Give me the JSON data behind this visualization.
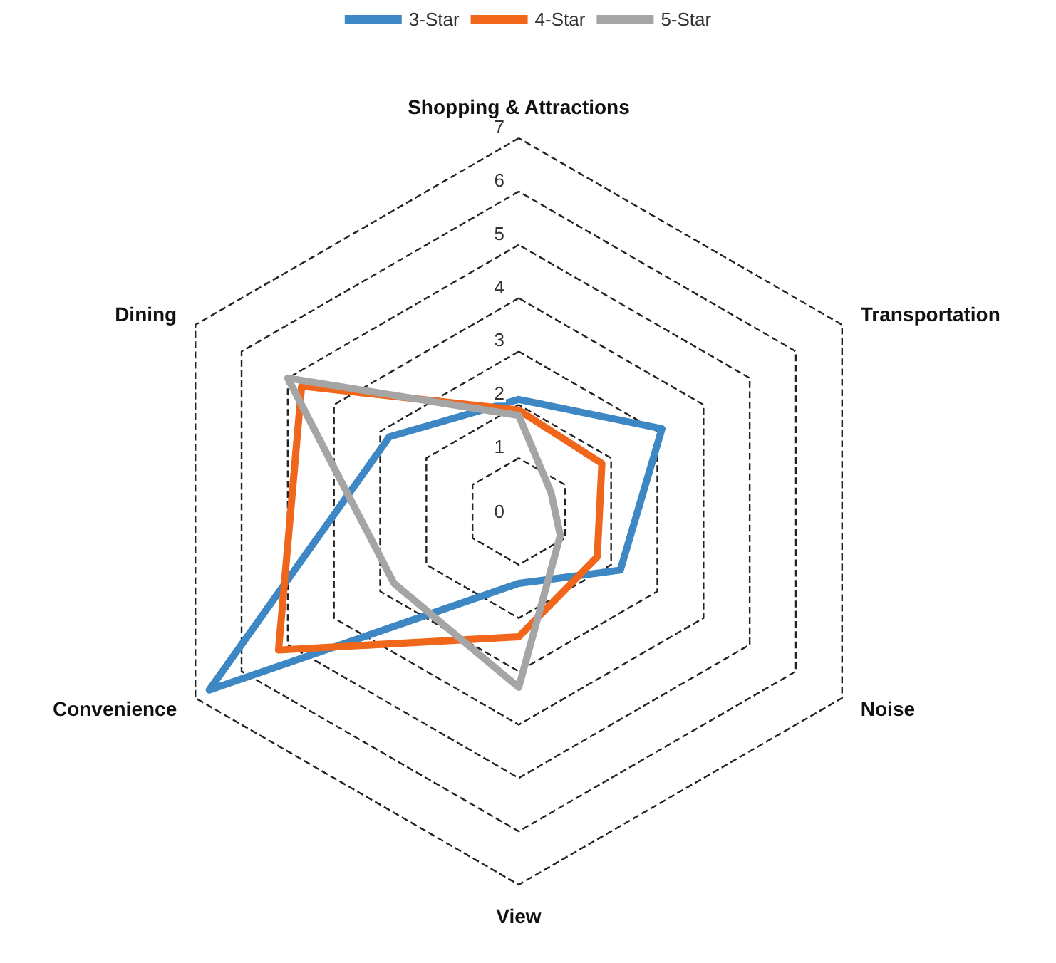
{
  "chart_data": {
    "type": "radar",
    "categories": [
      "Shopping & Attractions",
      "Transportation",
      "Noise",
      "View",
      "Convenience",
      "Dining"
    ],
    "series": [
      {
        "name": "3-Star",
        "color": "#3c87c4",
        "values": [
          2.1,
          3.1,
          2.2,
          1.35,
          6.7,
          2.8
        ]
      },
      {
        "name": "4-Star",
        "color": "#f0661a",
        "values": [
          1.9,
          1.8,
          1.7,
          2.35,
          5.2,
          4.7
        ]
      },
      {
        "name": "5-Star",
        "color": "#a5a5a5",
        "values": [
          1.8,
          0.7,
          0.9,
          3.3,
          2.7,
          5.0
        ]
      }
    ],
    "ylim": [
      0,
      7
    ],
    "yticks": [
      0,
      1,
      2,
      3,
      4,
      5,
      6,
      7
    ],
    "grid": true,
    "legend": "top",
    "marker": "none",
    "line_style": "solid"
  }
}
